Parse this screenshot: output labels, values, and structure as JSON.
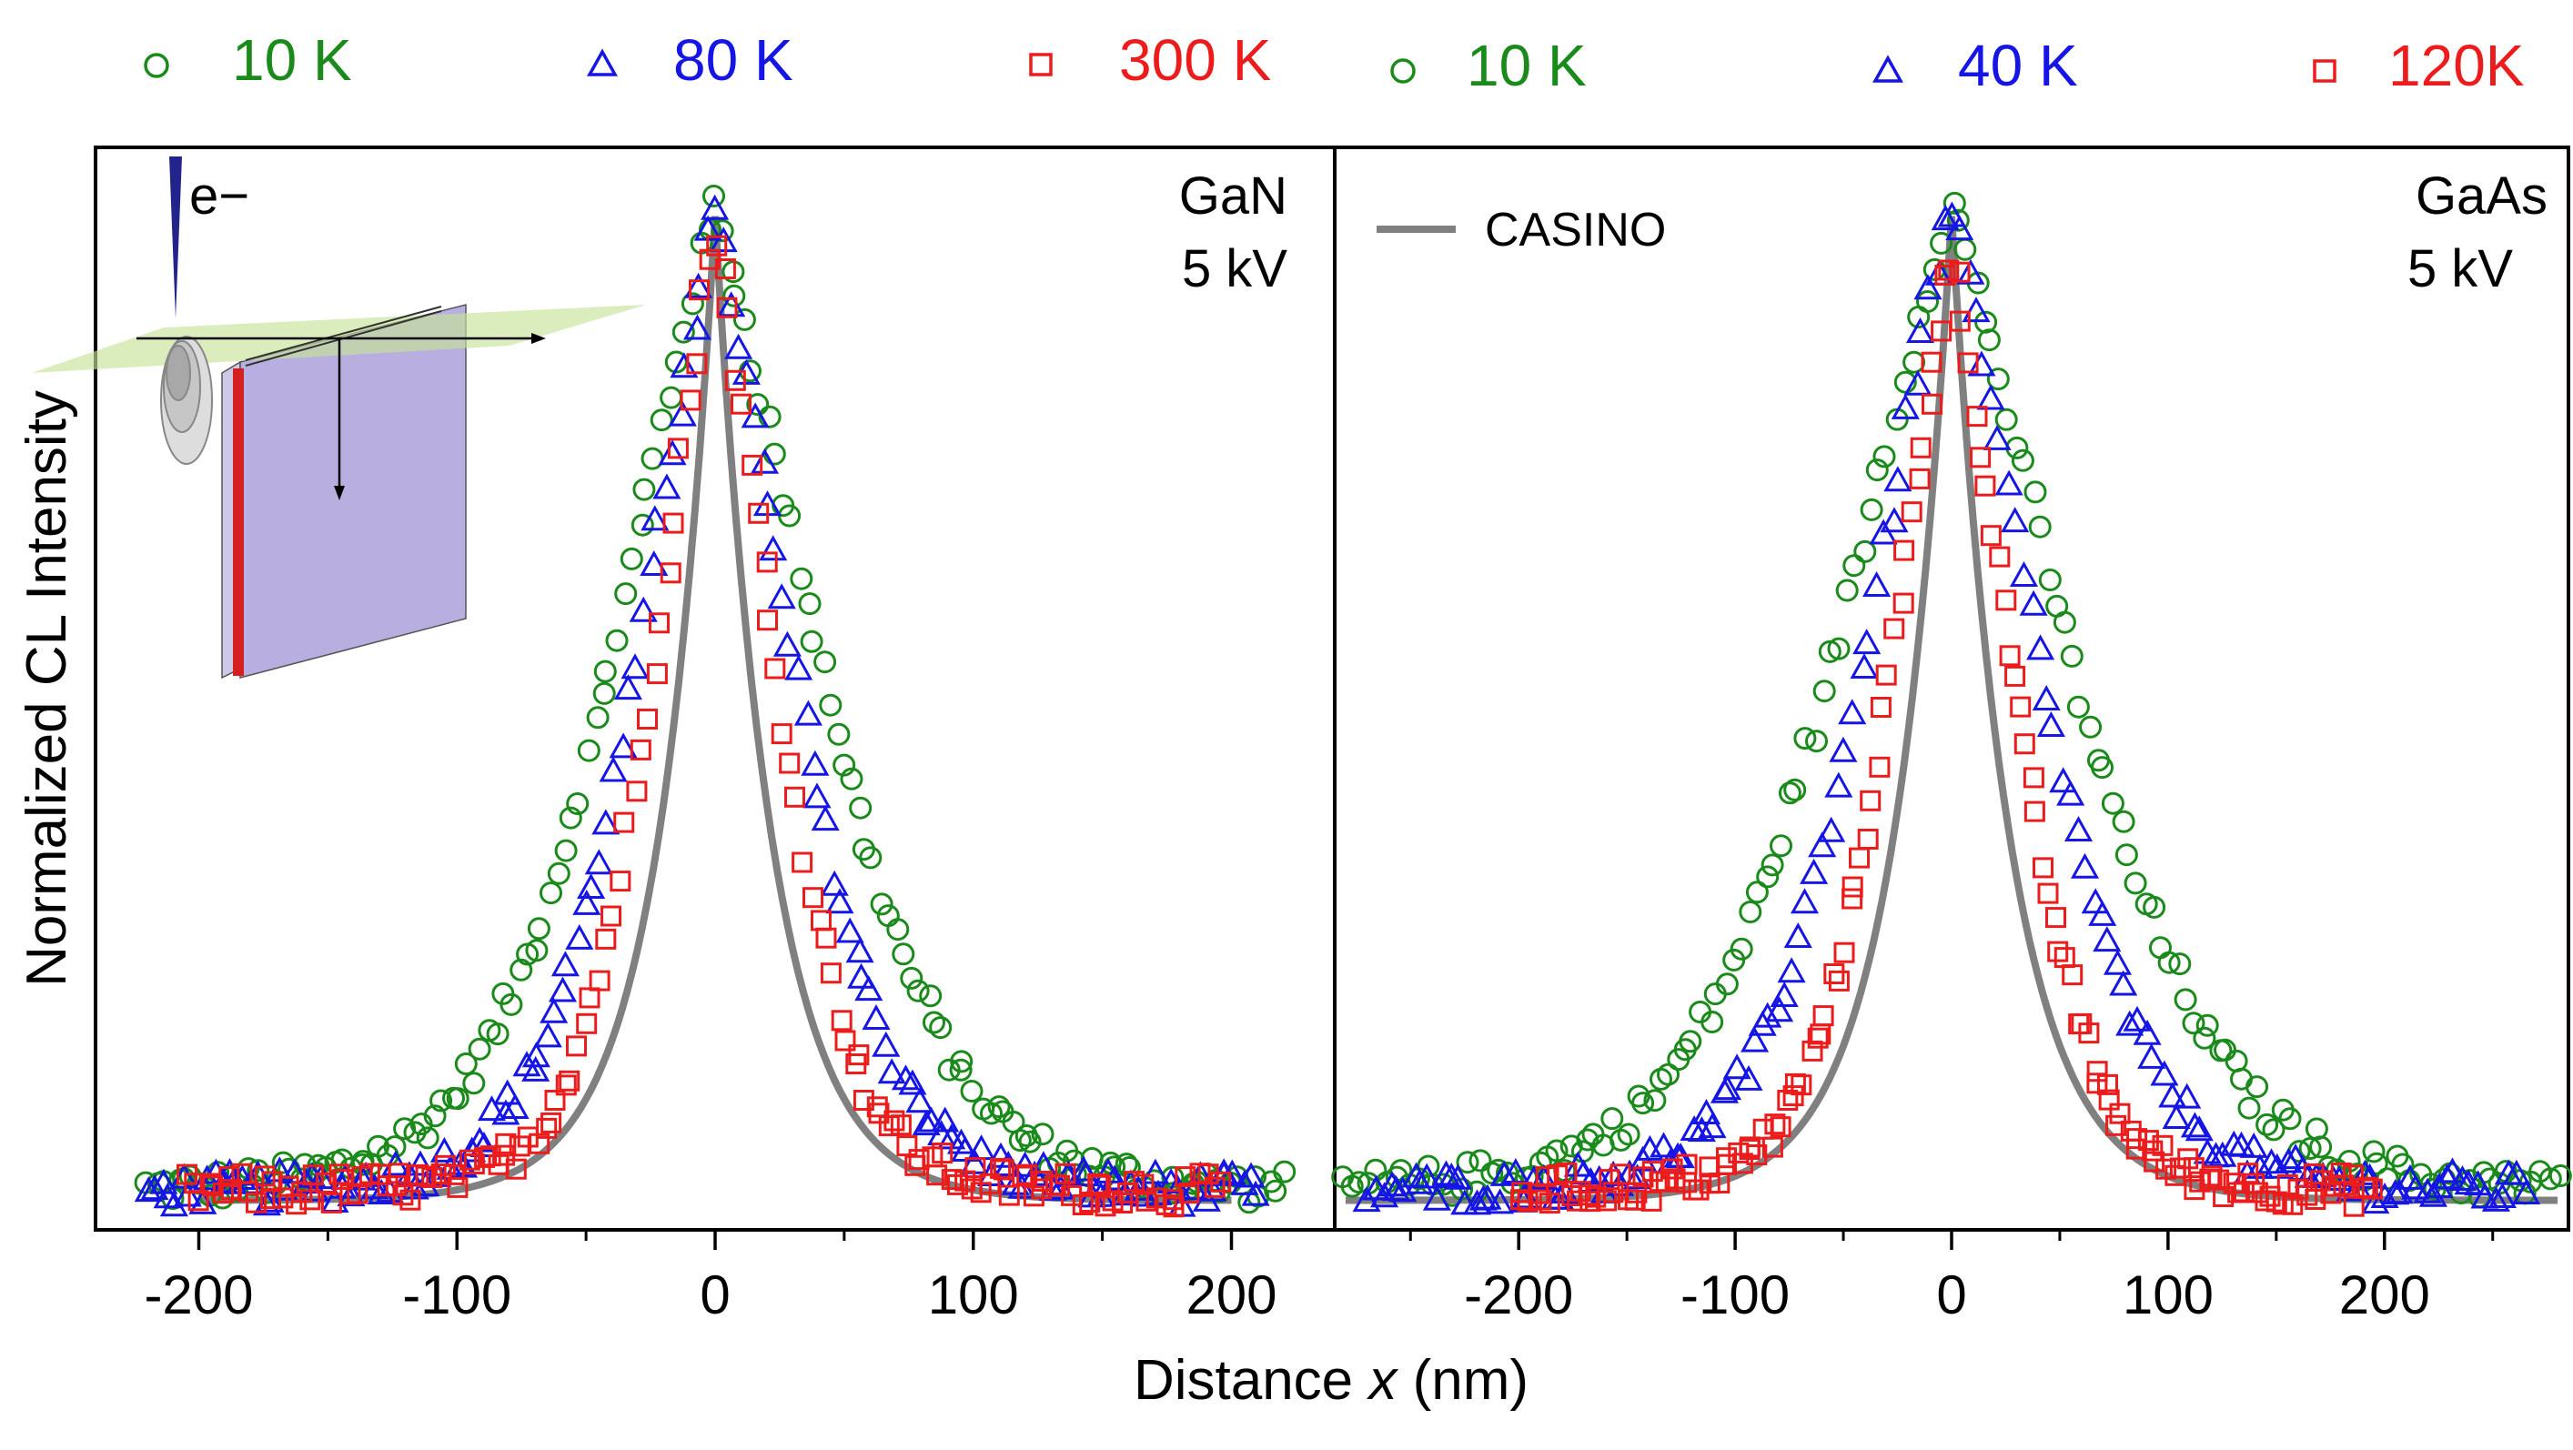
{
  "figure": {
    "ylabel": "Normalized CL Intensity",
    "xlabel_prefix": "Distance ",
    "xlabel_var": "x",
    "xlabel_suffix": " (nm)",
    "colors": {
      "green": "#1a8a1a",
      "blue": "#1515e6",
      "red": "#ec1c1c",
      "casino": "#808080",
      "axis": "#000000"
    }
  },
  "chart_data": [
    {
      "type": "scatter",
      "panel": "left",
      "material": "GaN",
      "voltage": "5 kV",
      "xlim": [
        -240,
        240
      ],
      "xticks": [
        -200,
        -100,
        0,
        100,
        200
      ],
      "ylim": [
        -0.03,
        1.07
      ],
      "legend": [
        {
          "label": "10 K",
          "marker": "circle",
          "color": "green"
        },
        {
          "label": "80 K",
          "marker": "triangle",
          "color": "blue"
        },
        {
          "label": "300 K",
          "marker": "square",
          "color": "red"
        }
      ],
      "inset": {
        "label": "e−"
      },
      "series": [
        {
          "name": "10 K",
          "marker": "circle",
          "color": "green",
          "x_range": [
            -220,
            220
          ],
          "peak": 1.0,
          "decay_length_nm": 50
        },
        {
          "name": "80 K",
          "marker": "triangle",
          "color": "blue",
          "x_range": [
            -220,
            210
          ],
          "peak": 0.99,
          "decay_length_nm": 38
        },
        {
          "name": "300 K",
          "marker": "square",
          "color": "red",
          "x_range": [
            -205,
            195
          ],
          "peak": 0.98,
          "decay_length_nm": 30
        }
      ],
      "casino": {
        "name": "CASINO",
        "x_range": [
          -200,
          200
        ],
        "peak": 1.0,
        "decay_length_nm": 22
      }
    },
    {
      "type": "scatter",
      "panel": "right",
      "material": "GaAs",
      "voltage": "5 kV",
      "xlim": [
        -285,
        285
      ],
      "xticks": [
        -200,
        -100,
        0,
        100,
        200
      ],
      "ylim": [
        -0.03,
        1.07
      ],
      "legend": [
        {
          "label": "10 K",
          "marker": "circle",
          "color": "green"
        },
        {
          "label": "40 K",
          "marker": "triangle",
          "color": "blue"
        },
        {
          "label": "120K",
          "marker": "square",
          "color": "red"
        }
      ],
      "series_legend": "CASINO",
      "series": [
        {
          "name": "10 K",
          "marker": "circle",
          "color": "green",
          "x_range": [
            -280,
            280
          ],
          "peak": 1.0,
          "decay_length_nm": 68
        },
        {
          "name": "40 K",
          "marker": "triangle",
          "color": "blue",
          "x_range": [
            -270,
            265
          ],
          "peak": 1.0,
          "decay_length_nm": 50
        },
        {
          "name": "120K",
          "marker": "square",
          "color": "red",
          "x_range": [
            -200,
            195
          ],
          "peak": 0.95,
          "decay_length_nm": 36
        }
      ],
      "casino": {
        "name": "CASINO",
        "x_range": [
          -280,
          280
        ],
        "peak": 1.0,
        "decay_length_nm": 27
      }
    }
  ]
}
